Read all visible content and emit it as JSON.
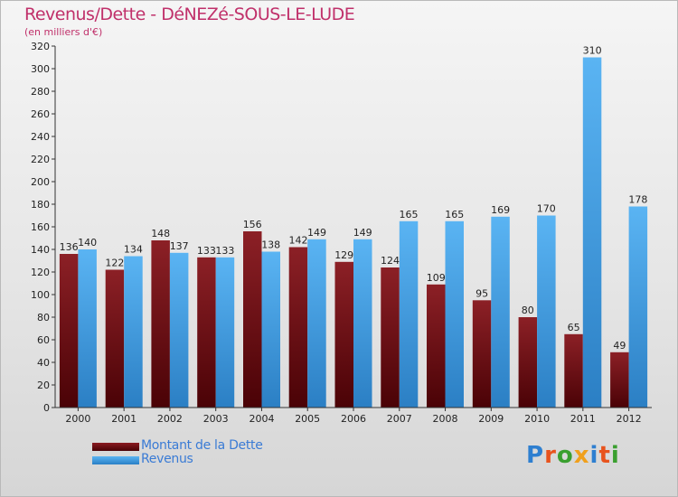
{
  "title": "Revenus/Dette - DéNEZé-SOUS-LE-LUDE",
  "subtitle": "(en milliers d'€)",
  "logo": {
    "text": "Proxiti",
    "letters": [
      "P",
      "r",
      "o",
      "x",
      "i",
      "t",
      "i"
    ],
    "colors": [
      "#2e7fd0",
      "#e8531d",
      "#3a9f2f",
      "#f0a01c",
      "#2e7fd0",
      "#e8531d",
      "#3a9f2f"
    ]
  },
  "colors": {
    "dette": "#6d0a10",
    "revenus": "#4aa3e8",
    "title": "#c0306a"
  },
  "chart_data": {
    "type": "bar",
    "title": "Revenus/Dette - DéNEZé-SOUS-LE-LUDE",
    "subtitle": "(en milliers d'€)",
    "categories": [
      "2000",
      "2001",
      "2002",
      "2003",
      "2004",
      "2005",
      "2006",
      "2007",
      "2008",
      "2009",
      "2010",
      "2011",
      "2012"
    ],
    "series": [
      {
        "name": "Montant de la Dette",
        "values": [
          136,
          122,
          148,
          133,
          156,
          142,
          129,
          124,
          109,
          95,
          80,
          65,
          49
        ]
      },
      {
        "name": "Revenus",
        "values": [
          140,
          134,
          137,
          133,
          138,
          149,
          149,
          165,
          165,
          169,
          170,
          310,
          178
        ]
      }
    ],
    "ylim": [
      0,
      320
    ],
    "yticks": [
      0,
      20,
      40,
      60,
      80,
      100,
      120,
      140,
      160,
      180,
      200,
      220,
      240,
      260,
      280,
      300,
      320
    ],
    "grid": false,
    "legend_position": "bottom-left"
  }
}
